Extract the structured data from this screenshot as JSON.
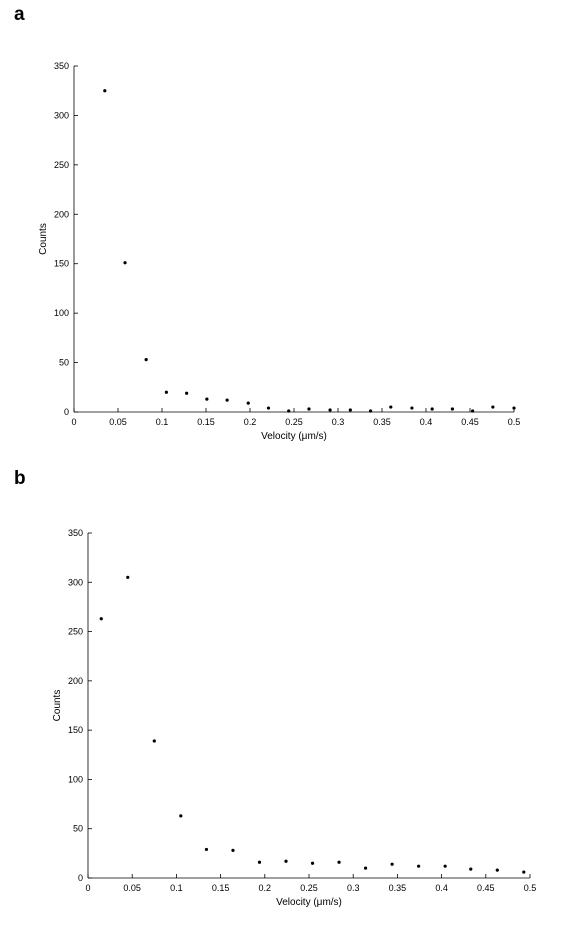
{
  "chart_data": [
    {
      "panel": "a",
      "type": "scatter",
      "xlabel": "Velocity (μm/s)",
      "ylabel": "Counts",
      "xlim": [
        0,
        0.5
      ],
      "ylim": [
        0,
        350
      ],
      "xticks": [
        "0",
        "0.05",
        "0.1",
        "0.15",
        "0.2",
        "0.25",
        "0.3",
        "0.35",
        "0.4",
        "0.45",
        "0.5"
      ],
      "yticks": [
        "0",
        "50",
        "100",
        "150",
        "200",
        "250",
        "300",
        "350"
      ],
      "grid": false,
      "x": [
        0.035,
        0.058,
        0.082,
        0.105,
        0.128,
        0.151,
        0.174,
        0.198,
        0.221,
        0.244,
        0.267,
        0.291,
        0.314,
        0.337,
        0.36,
        0.384,
        0.407,
        0.43,
        0.453,
        0.476,
        0.5
      ],
      "y": [
        325,
        151,
        53,
        20,
        19,
        13,
        12,
        9,
        4,
        1,
        3,
        2,
        2,
        1,
        5,
        4,
        3,
        3,
        1,
        5,
        4
      ]
    },
    {
      "panel": "b",
      "type": "scatter",
      "xlabel": "Velocity (μm/s)",
      "ylabel": "Counts",
      "xlim": [
        0,
        0.5
      ],
      "ylim": [
        0,
        350
      ],
      "xticks": [
        "0",
        "0.05",
        "0.1",
        "0.15",
        "0.2",
        "0.25",
        "0.3",
        "0.35",
        "0.4",
        "0.45",
        "0.5"
      ],
      "yticks": [
        "0",
        "50",
        "100",
        "150",
        "200",
        "250",
        "300",
        "350"
      ],
      "grid": false,
      "x": [
        0.015,
        0.045,
        0.075,
        0.105,
        0.134,
        0.164,
        0.194,
        0.224,
        0.254,
        0.284,
        0.314,
        0.344,
        0.374,
        0.404,
        0.433,
        0.463,
        0.493
      ],
      "y": [
        263,
        305,
        139,
        63,
        29,
        28,
        16,
        17,
        15,
        16,
        10,
        14,
        12,
        12,
        9,
        8,
        6
      ]
    }
  ],
  "panels": {
    "a": "a",
    "b": "b"
  }
}
